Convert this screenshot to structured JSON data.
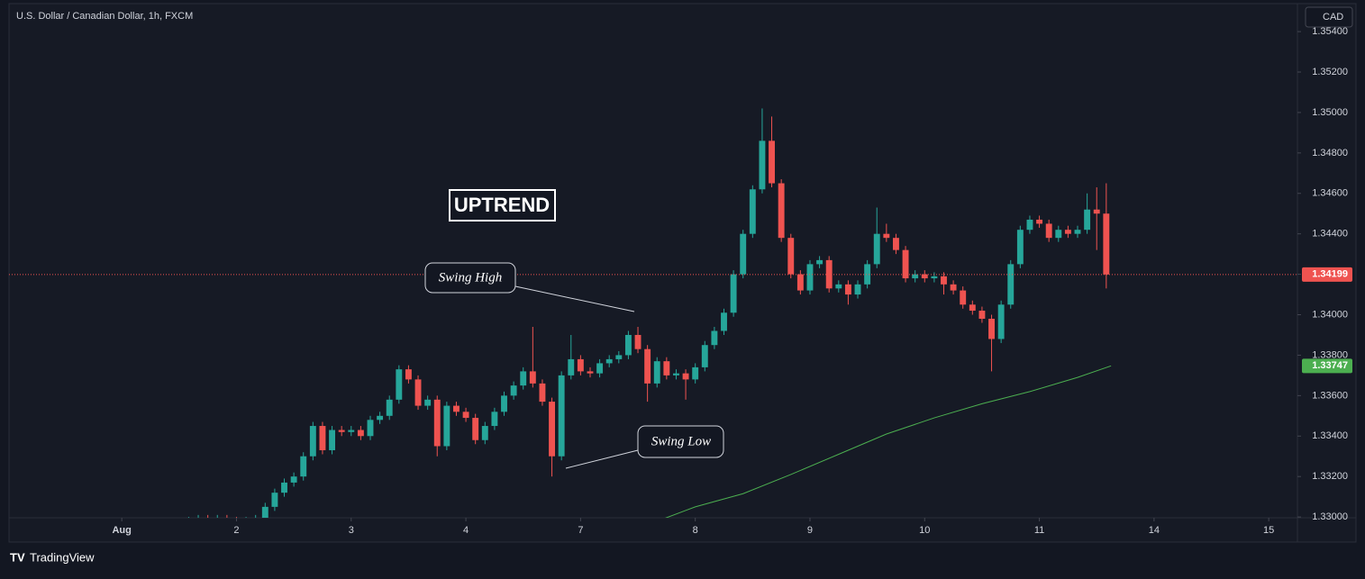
{
  "chart_data": {
    "type": "candlestick",
    "title": "U.S. Dollar / Canadian Dollar, 1h, FXCM",
    "currency": "CAD",
    "brand": "TradingView",
    "annotations": [
      "UPTREND",
      "Swing High",
      "Swing Low"
    ],
    "up_color": "#26a69a",
    "down_color": "#ef5350",
    "x": [
      14,
      16,
      18,
      20,
      22,
      24,
      26,
      28,
      30,
      32,
      34,
      36,
      38,
      40,
      42,
      44,
      46,
      48,
      50,
      52,
      54,
      56,
      58,
      60,
      62,
      64,
      66,
      68,
      70,
      72,
      74,
      76,
      78,
      80,
      82,
      84,
      86,
      88,
      90,
      92,
      94,
      96,
      98,
      100,
      102,
      104,
      106,
      108,
      110,
      112,
      114,
      116,
      118,
      120,
      122,
      124,
      126,
      128,
      130,
      132,
      134,
      136,
      138,
      140,
      142,
      144,
      146,
      148,
      150,
      152,
      154,
      156,
      158,
      160,
      162,
      164,
      166,
      168,
      170,
      172,
      174,
      176,
      178,
      180,
      182,
      184,
      186,
      188,
      190,
      192,
      194,
      196,
      198,
      200,
      202,
      204,
      206
    ],
    "open": [
      1.3297,
      1.3298,
      1.3299,
      1.3298,
      1.3299,
      1.3298,
      1.3297,
      1.3298,
      1.3299,
      1.3305,
      1.3312,
      1.3317,
      1.332,
      1.333,
      1.3345,
      1.3333,
      1.3343,
      1.3342,
      1.3343,
      1.334,
      1.3348,
      1.335,
      1.3358,
      1.3373,
      1.3368,
      1.3355,
      1.3358,
      1.3335,
      1.3355,
      1.3352,
      1.3349,
      1.3338,
      1.3345,
      1.3352,
      1.336,
      1.3365,
      1.3372,
      1.3366,
      1.3357,
      1.333,
      1.337,
      1.3378,
      1.3372,
      1.3371,
      1.3376,
      1.3378,
      1.338,
      1.339,
      1.3383,
      1.3366,
      1.3377,
      1.337,
      1.3371,
      1.3368,
      1.3374,
      1.3385,
      1.3392,
      1.3401,
      1.342,
      1.344,
      1.3462,
      1.3486,
      1.3465,
      1.3438,
      1.342,
      1.3412,
      1.3425,
      1.3427,
      1.3413,
      1.3415,
      1.341,
      1.3415,
      1.3425,
      1.344,
      1.3438,
      1.3432,
      1.3418,
      1.342,
      1.3418,
      1.3419,
      1.3415,
      1.3412,
      1.3405,
      1.3402,
      1.3398,
      1.3388,
      1.3405,
      1.3425,
      1.3442,
      1.3447,
      1.3445,
      1.3438,
      1.3442,
      1.344,
      1.3442,
      1.3452,
      1.345
    ],
    "high": [
      1.33,
      1.3301,
      1.3301,
      1.3301,
      1.3301,
      1.33,
      1.33,
      1.3301,
      1.3307,
      1.3314,
      1.3319,
      1.3322,
      1.3332,
      1.3347,
      1.3347,
      1.3345,
      1.3345,
      1.3345,
      1.3345,
      1.335,
      1.3352,
      1.336,
      1.3375,
      1.3375,
      1.337,
      1.336,
      1.336,
      1.3357,
      1.3357,
      1.3354,
      1.3351,
      1.3347,
      1.3354,
      1.3362,
      1.3367,
      1.3374,
      1.3394,
      1.3368,
      1.3359,
      1.3372,
      1.339,
      1.338,
      1.3374,
      1.3378,
      1.338,
      1.3382,
      1.3392,
      1.3394,
      1.3385,
      1.3379,
      1.3379,
      1.3373,
      1.3373,
      1.3376,
      1.3387,
      1.3394,
      1.3403,
      1.3422,
      1.3442,
      1.3464,
      1.3502,
      1.3498,
      1.3467,
      1.344,
      1.3422,
      1.3427,
      1.3429,
      1.3429,
      1.3417,
      1.3417,
      1.3417,
      1.3427,
      1.3453,
      1.3445,
      1.344,
      1.3434,
      1.3422,
      1.3422,
      1.3421,
      1.3421,
      1.3417,
      1.3414,
      1.3407,
      1.3404,
      1.34,
      1.3407,
      1.3427,
      1.3444,
      1.3449,
      1.3449,
      1.3447,
      1.3444,
      1.3444,
      1.3444,
      1.346,
      1.3463,
      1.3465
    ],
    "low": [
      1.3295,
      1.3296,
      1.3296,
      1.3296,
      1.3296,
      1.3295,
      1.3295,
      1.3296,
      1.3297,
      1.3303,
      1.331,
      1.3315,
      1.3318,
      1.3328,
      1.3331,
      1.3331,
      1.334,
      1.334,
      1.3338,
      1.3338,
      1.3346,
      1.3348,
      1.3356,
      1.3366,
      1.3353,
      1.3353,
      1.333,
      1.3333,
      1.335,
      1.3347,
      1.3336,
      1.3336,
      1.3343,
      1.335,
      1.3358,
      1.3363,
      1.3364,
      1.3355,
      1.332,
      1.3328,
      1.3368,
      1.337,
      1.3369,
      1.3369,
      1.3374,
      1.3376,
      1.3378,
      1.3381,
      1.3357,
      1.3364,
      1.3368,
      1.3368,
      1.3358,
      1.3366,
      1.3372,
      1.3383,
      1.339,
      1.3399,
      1.3418,
      1.3438,
      1.346,
      1.3463,
      1.3436,
      1.3418,
      1.341,
      1.341,
      1.3423,
      1.3411,
      1.3411,
      1.3405,
      1.3408,
      1.3413,
      1.3423,
      1.3436,
      1.343,
      1.3416,
      1.3416,
      1.3416,
      1.3416,
      1.341,
      1.341,
      1.3403,
      1.34,
      1.3396,
      1.3372,
      1.3386,
      1.3403,
      1.3423,
      1.344,
      1.3443,
      1.3436,
      1.3436,
      1.3438,
      1.3438,
      1.344,
      1.3432,
      1.3413
    ],
    "close": [
      1.3298,
      1.3299,
      1.3298,
      1.3299,
      1.3298,
      1.3297,
      1.3298,
      1.3299,
      1.3305,
      1.3312,
      1.3317,
      1.332,
      1.333,
      1.3345,
      1.3333,
      1.3343,
      1.3342,
      1.3343,
      1.334,
      1.3348,
      1.335,
      1.3358,
      1.3373,
      1.3368,
      1.3355,
      1.3358,
      1.3335,
      1.3355,
      1.3352,
      1.3349,
      1.3338,
      1.3345,
      1.3352,
      1.336,
      1.3365,
      1.3372,
      1.3366,
      1.3357,
      1.333,
      1.337,
      1.3378,
      1.3372,
      1.3371,
      1.3376,
      1.3378,
      1.338,
      1.339,
      1.3383,
      1.3366,
      1.3377,
      1.337,
      1.3371,
      1.3368,
      1.3374,
      1.3385,
      1.3392,
      1.3401,
      1.342,
      1.344,
      1.3462,
      1.3486,
      1.3465,
      1.3438,
      1.342,
      1.3412,
      1.3425,
      1.3427,
      1.3413,
      1.3415,
      1.341,
      1.3415,
      1.3425,
      1.344,
      1.3438,
      1.3432,
      1.3418,
      1.342,
      1.3418,
      1.3419,
      1.3415,
      1.3412,
      1.3405,
      1.3402,
      1.3398,
      1.3388,
      1.3405,
      1.3425,
      1.3442,
      1.3447,
      1.3445,
      1.3438,
      1.3442,
      1.344,
      1.3442,
      1.3452,
      1.345,
      1.34199
    ],
    "ma": {
      "color": "#4caf50",
      "x": [
        111,
        120,
        130,
        140,
        150,
        160,
        170,
        180,
        190,
        200,
        207
      ],
      "values": [
        1.3297,
        1.3305,
        1.33115,
        1.3321,
        1.3331,
        1.3341,
        1.3349,
        1.3356,
        1.3362,
        1.3369,
        1.33747
      ]
    },
    "xlim": [
      -23.6,
      246
    ],
    "xticks": [
      {
        "value": 0,
        "label": "Aug"
      },
      {
        "value": 24,
        "label": "2"
      },
      {
        "value": 48,
        "label": "3"
      },
      {
        "value": 72,
        "label": "4"
      },
      {
        "value": 96,
        "label": "7"
      },
      {
        "value": 120,
        "label": "8"
      },
      {
        "value": 144,
        "label": "9"
      },
      {
        "value": 168,
        "label": "10"
      },
      {
        "value": 192,
        "label": "11"
      },
      {
        "value": 216,
        "label": "14"
      },
      {
        "value": 240,
        "label": "15"
      }
    ],
    "ylim": [
      1.32996,
      1.35534
    ],
    "yticks": [
      {
        "value": 1.33,
        "label": "1.33000"
      },
      {
        "value": 1.332,
        "label": "1.33200"
      },
      {
        "value": 1.334,
        "label": "1.33400"
      },
      {
        "value": 1.336,
        "label": "1.33600"
      },
      {
        "value": 1.338,
        "label": "1.33800"
      },
      {
        "value": 1.34,
        "label": "1.34000"
      },
      {
        "value": 1.342,
        "label": "1.34200"
      },
      {
        "value": 1.344,
        "label": "1.34400"
      },
      {
        "value": 1.346,
        "label": "1.34600"
      },
      {
        "value": 1.348,
        "label": "1.34800"
      },
      {
        "value": 1.35,
        "label": "1.35000"
      },
      {
        "value": 1.352,
        "label": "1.35200"
      },
      {
        "value": 1.354,
        "label": "1.35400"
      }
    ]
  }
}
